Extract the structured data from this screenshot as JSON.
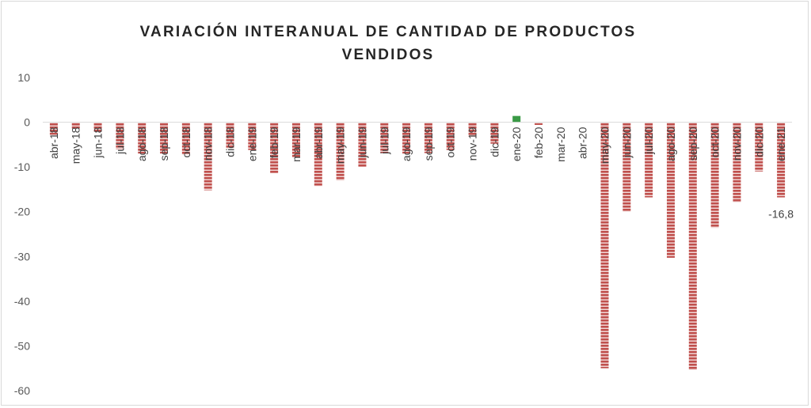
{
  "chart_data": {
    "type": "bar",
    "title_line1": "VARIACIÓN INTERANUAL DE CANTIDAD DE PRODUCTOS",
    "title_line2": "VENDIDOS",
    "xlabel": "",
    "ylabel": "",
    "ylim": [
      -60,
      10
    ],
    "yticks": [
      "10",
      "0",
      "-10",
      "-20",
      "-30",
      "-40",
      "-50",
      "-60"
    ],
    "categories": [
      "abr-18",
      "may-18",
      "jun-18",
      "jul-18",
      "ago-18",
      "sep-18",
      "oct-18",
      "nov-18",
      "dic-18",
      "ene-19",
      "feb-19",
      "mar-19",
      "abr-19",
      "may-19",
      "jun-19",
      "jul-19",
      "ago-19",
      "sep-19",
      "oct-19",
      "nov-19",
      "dic-19",
      "ene-20",
      "feb-20",
      "mar-20",
      "abr-20",
      "may-20",
      "jun-20",
      "jul-20",
      "ago-20",
      "sep-20",
      "oct-20",
      "nov-20",
      "dic-20",
      "ene-21"
    ],
    "values": [
      -2.8,
      -1.4,
      -2.1,
      -6.0,
      -7.0,
      -7.0,
      -7.2,
      -15.2,
      -5.9,
      -6.2,
      -11.4,
      -7.8,
      -14.3,
      -13.0,
      -10.0,
      -6.9,
      -7.0,
      -6.9,
      -6.2,
      -3.2,
      -4.8,
      1.4,
      -0.6,
      0,
      0,
      -55.0,
      -20.0,
      -16.8,
      -30.3,
      -55.4,
      -23.6,
      -17.9,
      -11.0,
      -16.8
    ],
    "data_labels": [
      {
        "index": 33,
        "text": "-16,8"
      }
    ],
    "grid": false,
    "legend": "none",
    "colors": {
      "negative": "#c0504d",
      "positive": "#3a9a46",
      "axis": "#d9d9d9",
      "text": "#404040"
    }
  }
}
